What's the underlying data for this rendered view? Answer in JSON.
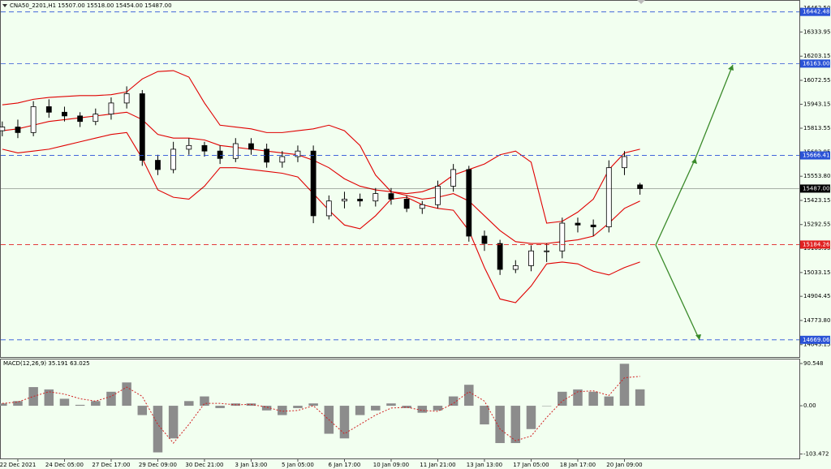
{
  "chart_data": [
    {
      "type": "candlestick",
      "title": "CNA50_2201,H1  15507.00 15518.00 15454.00 15487.00",
      "categories": [
        null,
        "22 Dec 2021",
        null,
        null,
        "24 Dec 05:00",
        null,
        null,
        "27 Dec 17:00",
        null,
        null,
        "29 Dec 09:00",
        null,
        null,
        "30 Dec 21:00",
        null,
        null,
        "3 Jan 13:00",
        null,
        null,
        "5 Jan 05:00",
        null,
        null,
        "6 Jan 17:00",
        null,
        null,
        "10 Jan 09:00",
        null,
        null,
        "11 Jan 21:00",
        null,
        null,
        "13 Jan 13:00",
        null,
        null,
        "17 Jan 05:00",
        null,
        null,
        "18 Jan 17:00",
        null,
        null,
        "20 Jan 09:00",
        null
      ],
      "open": [
        15800,
        15820,
        15790,
        15930,
        15900,
        15880,
        15850,
        15890,
        15950,
        16000,
        15640,
        15590,
        15700,
        15720,
        15690,
        15650,
        15730,
        15700,
        15630,
        15660,
        15690,
        15340,
        15420,
        15430,
        15420,
        15460,
        15430,
        15380,
        15400,
        15500,
        15590,
        15230,
        15190,
        15050,
        15070,
        15150,
        15150,
        15300,
        15290,
        15280,
        15600,
        15507
      ],
      "high": [
        15850,
        15860,
        15960,
        15970,
        15930,
        15900,
        15920,
        15980,
        16040,
        16020,
        15670,
        15740,
        15760,
        15740,
        15720,
        15760,
        15760,
        15730,
        15690,
        15720,
        15720,
        15450,
        15470,
        15460,
        15490,
        15490,
        15450,
        15420,
        15530,
        15620,
        15610,
        15260,
        15210,
        15100,
        15180,
        15190,
        15330,
        15330,
        15320,
        15640,
        15690,
        15518
      ],
      "low": [
        15770,
        15760,
        15770,
        15870,
        15850,
        15820,
        15830,
        15860,
        15920,
        15610,
        15560,
        15570,
        15670,
        15660,
        15620,
        15630,
        15670,
        15600,
        15600,
        15630,
        15300,
        15320,
        15380,
        15390,
        15390,
        15400,
        15360,
        15350,
        15380,
        15470,
        15200,
        15150,
        15020,
        15030,
        15040,
        15090,
        15110,
        15250,
        15230,
        15250,
        15560,
        15454
      ],
      "close": [
        15820,
        15790,
        15930,
        15900,
        15880,
        15850,
        15890,
        15950,
        16000,
        15640,
        15590,
        15700,
        15720,
        15690,
        15650,
        15730,
        15700,
        15630,
        15660,
        15690,
        15340,
        15420,
        15430,
        15420,
        15460,
        15430,
        15380,
        15400,
        15500,
        15590,
        15230,
        15190,
        15050,
        15070,
        15150,
        15150,
        15300,
        15290,
        15280,
        15600,
        15660,
        15487
      ],
      "candle_color": "#000000",
      "series": [
        {
          "color": "#e00000",
          "values": [
            15940,
            15950,
            15970,
            15980,
            15985,
            15990,
            15990,
            15995,
            16010,
            16080,
            16120,
            16125,
            16090,
            15950,
            15830,
            15820,
            15810,
            15790,
            15790,
            15800,
            15810,
            15830,
            15800,
            15720,
            15560,
            15470,
            15460,
            15470,
            15500,
            15560,
            15590,
            15620,
            15670,
            15690,
            15630,
            15300,
            15310,
            15360,
            15430,
            15590,
            15680,
            15700
          ]
        },
        {
          "color": "#e00000",
          "values": [
            15800,
            15810,
            15830,
            15850,
            15860,
            15870,
            15880,
            15890,
            15900,
            15860,
            15780,
            15760,
            15760,
            15750,
            15720,
            15710,
            15700,
            15690,
            15680,
            15670,
            15640,
            15600,
            15540,
            15500,
            15480,
            15470,
            15450,
            15430,
            15440,
            15460,
            15420,
            15340,
            15260,
            15200,
            15190,
            15190,
            15200,
            15210,
            15230,
            15300,
            15380,
            15420
          ]
        },
        {
          "color": "#e00000",
          "values": [
            15700,
            15680,
            15690,
            15700,
            15720,
            15740,
            15760,
            15780,
            15790,
            15650,
            15480,
            15440,
            15430,
            15500,
            15600,
            15600,
            15590,
            15580,
            15570,
            15550,
            15460,
            15370,
            15290,
            15270,
            15340,
            15430,
            15440,
            15400,
            15380,
            15370,
            15260,
            15060,
            14890,
            14870,
            14960,
            15080,
            15090,
            15080,
            15040,
            15020,
            15060,
            15090
          ]
        }
      ],
      "levels": [
        {
          "value": 16442.48,
          "label": "16442.48",
          "color": "#2a52d6"
        },
        {
          "value": 16163,
          "label": "16163.00",
          "color": "#2a52d6"
        },
        {
          "value": 15666.41,
          "label": "15666.41",
          "color": "#2a52d6"
        },
        {
          "value": 15487,
          "label": "15487.00",
          "color": "#000000"
        },
        {
          "value": 15184.26,
          "label": "15184.26",
          "color": "#e02020"
        },
        {
          "value": 14669.06,
          "label": "14669.06",
          "color": "#2a52d6"
        }
      ],
      "ylim": [
        14620,
        16485
      ],
      "yticks": [
        {
          "value": 16462.5,
          "label": "16462.50"
        },
        16333.95,
        16203.15,
        16072.55,
        15943.15,
        15813.55,
        15683.95,
        {
          "value": 15553.8,
          "label": "15553.80"
        },
        15423.15,
        15292.55,
        15163.95,
        15033.15,
        14904.45,
        {
          "value": 14773.8,
          "label": "14773.80"
        },
        14643.15
      ]
    },
    {
      "type": "macd",
      "title": "MACD(12,26,9) 35.191 63.025",
      "values": [
        5,
        10,
        40,
        35,
        15,
        2,
        10,
        30,
        50,
        -20,
        -100,
        -70,
        10,
        20,
        -5,
        5,
        5,
        -10,
        -20,
        -5,
        5,
        -60,
        -70,
        -20,
        -10,
        5,
        -5,
        -15,
        -10,
        20,
        45,
        -40,
        -80,
        -80,
        -50,
        0,
        30,
        35,
        30,
        20,
        90,
        35.191
      ],
      "color": "#8c8c8c",
      "signal": {
        "color": "#d02020",
        "values": [
          5,
          8,
          20,
          30,
          25,
          15,
          10,
          20,
          40,
          20,
          -40,
          -80,
          -40,
          5,
          5,
          2,
          3,
          -3,
          -12,
          -10,
          0,
          -30,
          -60,
          -40,
          -20,
          -5,
          -3,
          -10,
          -12,
          5,
          30,
          10,
          -50,
          -75,
          -65,
          -25,
          10,
          30,
          32,
          22,
          60,
          63.025
        ]
      },
      "ylim": [
        -113,
        101
      ],
      "yticks": [
        90.548,
        {
          "value": 0,
          "label": "0.00"
        },
        -103.472
      ]
    }
  ]
}
